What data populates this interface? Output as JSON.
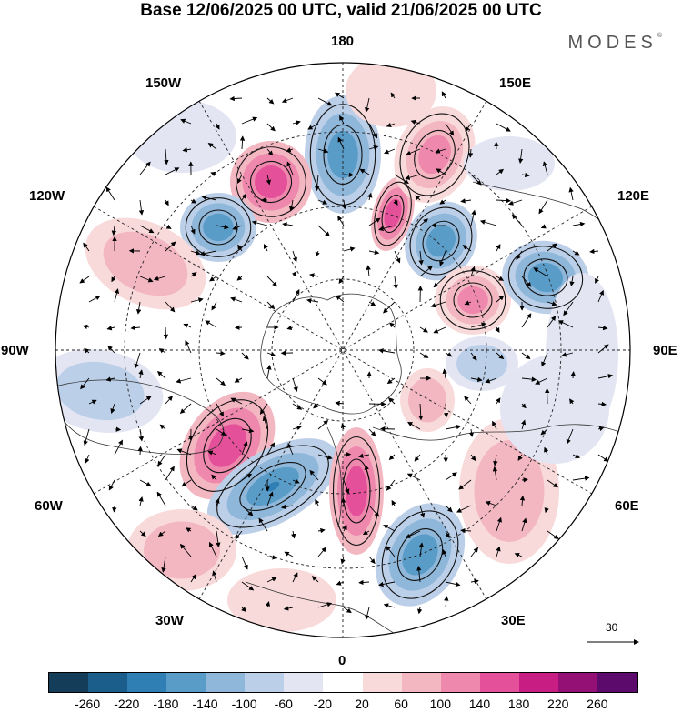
{
  "header": {
    "title": "Base 12/06/2025 00 UTC, valid 21/06/2025 00 UTC",
    "brand": "MODES",
    "brand_mark": "©"
  },
  "map": {
    "projection": "north-polar-stereographic",
    "center_longitude_bottom": "0",
    "longitude_labels": {
      "top": "180",
      "top_left": "150W",
      "top_right": "150E",
      "upper_left": "120W",
      "upper_right": "120E",
      "left": "90W",
      "right": "90E",
      "lower_left": "60W",
      "lower_right": "60E",
      "bottom_left": "30W",
      "bottom_right": "30E",
      "bottom": "0"
    },
    "coastline_color": "#333333",
    "graticule_style": "dashed",
    "vector_reference": {
      "label": "30",
      "value": 30
    }
  },
  "colorbar": {
    "colors": [
      "#143d59",
      "#1b5e8c",
      "#2f7fb5",
      "#5a9cc8",
      "#8fb7da",
      "#bccfe8",
      "#e3e5f3",
      "#ffffff",
      "#f9dada",
      "#f3b7c2",
      "#ee88ad",
      "#e4519a",
      "#c81e84",
      "#951075",
      "#5c0a6b"
    ],
    "ticks": [
      "-260",
      "-220",
      "-180",
      "-140",
      "-100",
      "-60",
      "-20",
      "20",
      "60",
      "100",
      "140",
      "180",
      "220",
      "260"
    ],
    "range": [
      -300,
      300
    ]
  }
}
